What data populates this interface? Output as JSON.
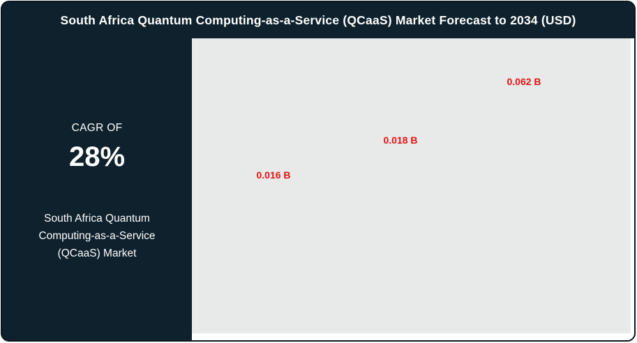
{
  "title": "South Africa Quantum Computing-as-a-Service (QCaaS) Market Forecast to 2034 (USD)",
  "sidebar": {
    "cagr_label": "CAGR OF",
    "cagr_value": "28%",
    "market_name": "South Africa Quantum Computing-as-a-Service (QCaaS) Market"
  },
  "colors": {
    "panel_navy": "#0e212c",
    "card_border": "#0a1620",
    "chart_background": "#e8e9e9",
    "label_red": "#e31212",
    "text_white": "#ffffff"
  },
  "chart_data": {
    "type": "bar",
    "title": "South Africa Quantum Computing-as-a-Service (QCaaS) Market Forecast to 2034 (USD)",
    "currency": "USD",
    "value_suffix": " B",
    "values": [
      0.016,
      0.018,
      0.062
    ],
    "labels": [
      "0.016 B",
      "0.018 B",
      "0.062 B"
    ],
    "ylim": [
      0,
      0.08
    ],
    "grid": false,
    "legend": false
  }
}
